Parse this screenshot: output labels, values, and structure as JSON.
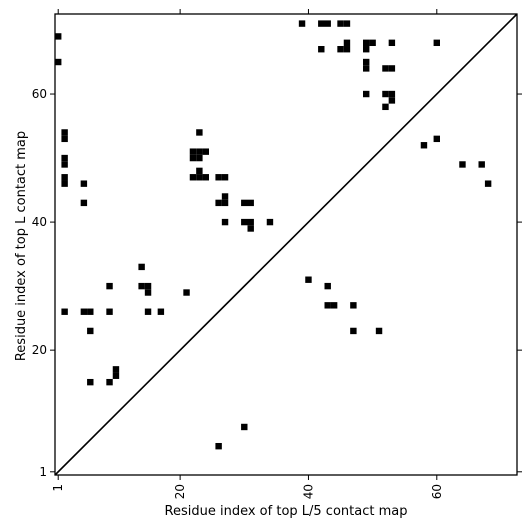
{
  "chart_data": {
    "type": "scatter",
    "title": "",
    "xlabel": "Residue index of top L/5 contact map",
    "ylabel": "Residue index of top L contact map",
    "xlim": [
      0.5,
      72.5
    ],
    "ylim": [
      0.5,
      72.5
    ],
    "xticks": [
      1,
      20,
      40,
      60
    ],
    "yticks": [
      1,
      20,
      40,
      60
    ],
    "grid": false,
    "diagonal": true,
    "marker": "square",
    "color": "#000000",
    "upper_points": [
      [
        39,
        71
      ],
      [
        42,
        71
      ],
      [
        43,
        71
      ],
      [
        45,
        71
      ],
      [
        46,
        71
      ],
      [
        42,
        67
      ],
      [
        45,
        67
      ],
      [
        46,
        67
      ],
      [
        46,
        68
      ],
      [
        49,
        67
      ],
      [
        49,
        68
      ],
      [
        50,
        68
      ],
      [
        53,
        68
      ],
      [
        60,
        68
      ],
      [
        49,
        64
      ],
      [
        49,
        65
      ],
      [
        52,
        64
      ],
      [
        53,
        64
      ],
      [
        49,
        60
      ],
      [
        52,
        60
      ],
      [
        53,
        60
      ],
      [
        53,
        59
      ],
      [
        52,
        58
      ],
      [
        58,
        52
      ],
      [
        60,
        53
      ],
      [
        64,
        49
      ],
      [
        67,
        49
      ],
      [
        68,
        46
      ]
    ],
    "lower_points": [
      [
        1,
        69
      ],
      [
        1,
        65
      ],
      [
        2,
        54
      ],
      [
        2,
        53
      ],
      [
        2,
        50
      ],
      [
        2,
        49
      ],
      [
        2,
        47
      ],
      [
        2,
        46
      ],
      [
        5,
        46
      ],
      [
        5,
        43
      ],
      [
        23,
        54
      ],
      [
        22,
        51
      ],
      [
        23,
        51
      ],
      [
        24,
        51
      ],
      [
        22,
        50
      ],
      [
        23,
        50
      ],
      [
        23,
        48
      ],
      [
        22,
        47
      ],
      [
        23,
        47
      ],
      [
        24,
        47
      ],
      [
        26,
        47
      ],
      [
        27,
        47
      ],
      [
        26,
        43
      ],
      [
        27,
        43
      ],
      [
        27,
        44
      ],
      [
        27,
        40
      ],
      [
        30,
        43
      ],
      [
        31,
        43
      ],
      [
        30,
        40
      ],
      [
        31,
        40
      ],
      [
        31,
        39
      ],
      [
        34,
        40
      ],
      [
        2,
        26
      ],
      [
        5,
        26
      ],
      [
        6,
        26
      ],
      [
        6,
        23
      ],
      [
        9,
        26
      ],
      [
        9,
        30
      ],
      [
        14,
        33
      ],
      [
        14,
        30
      ],
      [
        15,
        30
      ],
      [
        15,
        29
      ],
      [
        15,
        26
      ],
      [
        17,
        26
      ],
      [
        21,
        29
      ],
      [
        9,
        15
      ],
      [
        10,
        16
      ],
      [
        10,
        17
      ],
      [
        6,
        15
      ],
      [
        26,
        5
      ],
      [
        30,
        8
      ],
      [
        40,
        31
      ],
      [
        43,
        30
      ],
      [
        43,
        27
      ],
      [
        44,
        27
      ],
      [
        47,
        27
      ],
      [
        47,
        23
      ],
      [
        51,
        23
      ]
    ]
  }
}
